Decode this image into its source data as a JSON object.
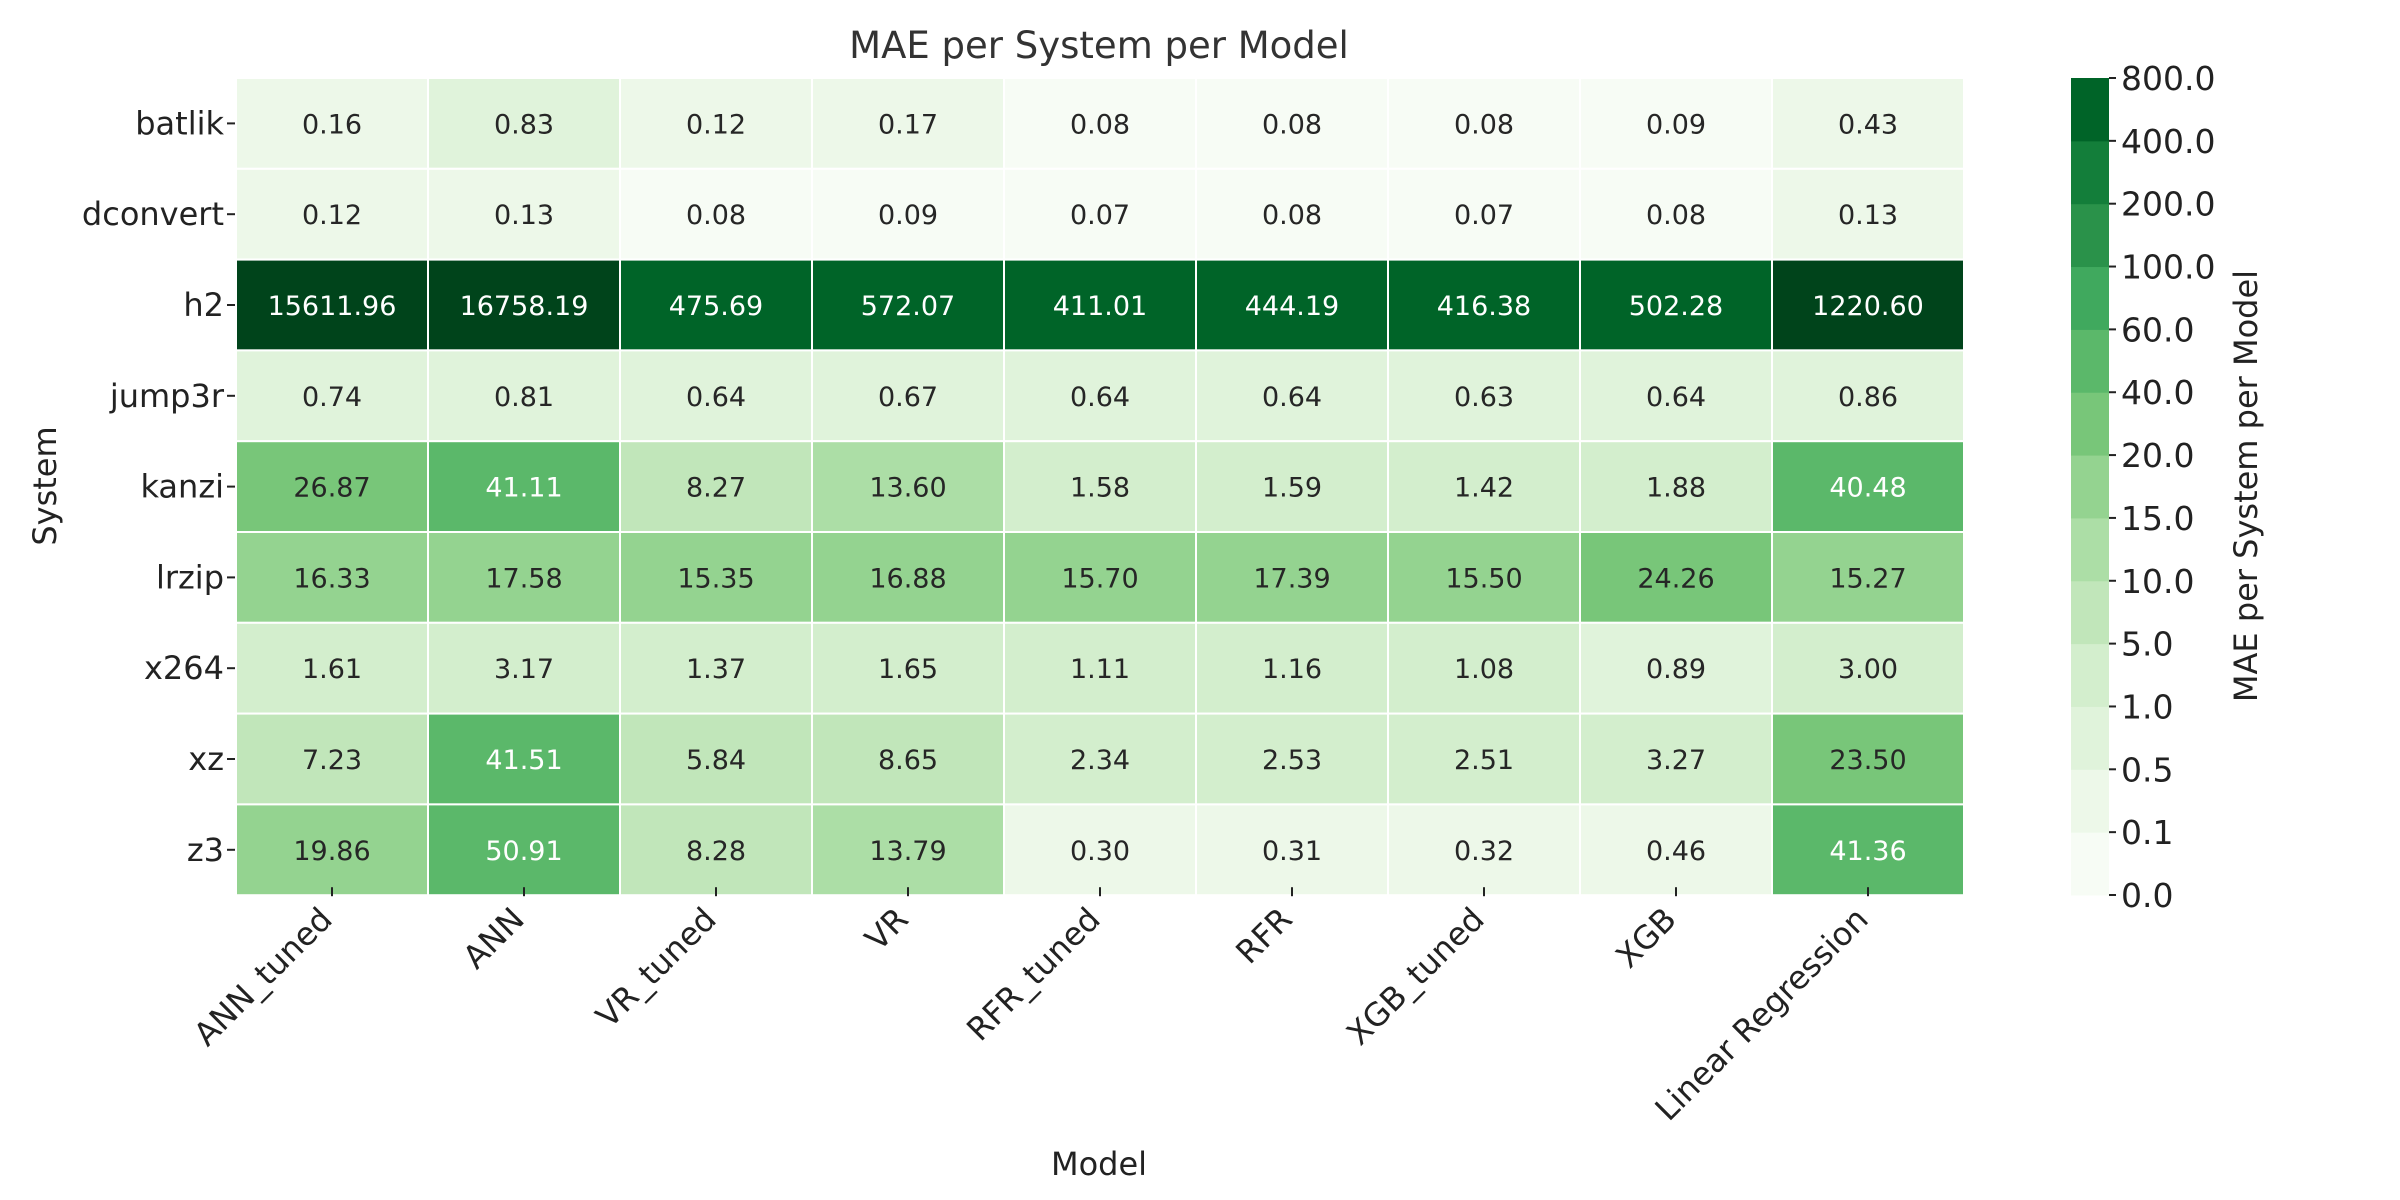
{
  "chart_data": {
    "type": "heatmap",
    "title": "MAE per System per Model",
    "xlabel": "Model",
    "ylabel": "System",
    "x_categories": [
      "ANN_tuned",
      "ANN",
      "VR_tuned",
      "VR",
      "RFR_tuned",
      "RFR",
      "XGB_tuned",
      "XGB",
      "Linear Regression"
    ],
    "y_categories": [
      "batlik",
      "dconvert",
      "h2",
      "jump3r",
      "kanzi",
      "lrzip",
      "x264",
      "xz",
      "z3"
    ],
    "values": [
      [
        "0.16",
        "0.83",
        "0.12",
        "0.17",
        "0.08",
        "0.08",
        "0.08",
        "0.09",
        "0.43"
      ],
      [
        "0.12",
        "0.13",
        "0.08",
        "0.09",
        "0.07",
        "0.08",
        "0.07",
        "0.08",
        "0.13"
      ],
      [
        "15611.96",
        "16758.19",
        "475.69",
        "572.07",
        "411.01",
        "444.19",
        "416.38",
        "502.28",
        "1220.60"
      ],
      [
        "0.74",
        "0.81",
        "0.64",
        "0.67",
        "0.64",
        "0.64",
        "0.63",
        "0.64",
        "0.86"
      ],
      [
        "26.87",
        "41.11",
        "8.27",
        "13.60",
        "1.58",
        "1.59",
        "1.42",
        "1.88",
        "40.48"
      ],
      [
        "16.33",
        "17.58",
        "15.35",
        "16.88",
        "15.70",
        "17.39",
        "15.50",
        "24.26",
        "15.27"
      ],
      [
        "1.61",
        "3.17",
        "1.37",
        "1.65",
        "1.11",
        "1.16",
        "1.08",
        "0.89",
        "3.00"
      ],
      [
        "7.23",
        "41.51",
        "5.84",
        "8.65",
        "2.34",
        "2.53",
        "2.51",
        "3.27",
        "23.50"
      ],
      [
        "19.86",
        "50.91",
        "8.28",
        "13.79",
        "0.30",
        "0.31",
        "0.32",
        "0.46",
        "41.36"
      ]
    ],
    "colorbar": {
      "label": "MAE per System per Model",
      "boundaries": [
        "0.0",
        "0.1",
        "0.5",
        "1.0",
        "5.0",
        "10.0",
        "15.0",
        "20.0",
        "40.0",
        "60.0",
        "100.0",
        "200.0",
        "400.0",
        "800.0"
      ],
      "colors": [
        "#f7fcf5",
        "#edf8e9",
        "#e0f3db",
        "#d3eecd",
        "#c1e6ba",
        "#acdea6",
        "#94d390",
        "#78c679",
        "#5bb86a",
        "#40a95e",
        "#2a924a",
        "#137e3a",
        "#006428"
      ],
      "over_color": "#00441b"
    },
    "text_light_threshold_index": 8
  }
}
